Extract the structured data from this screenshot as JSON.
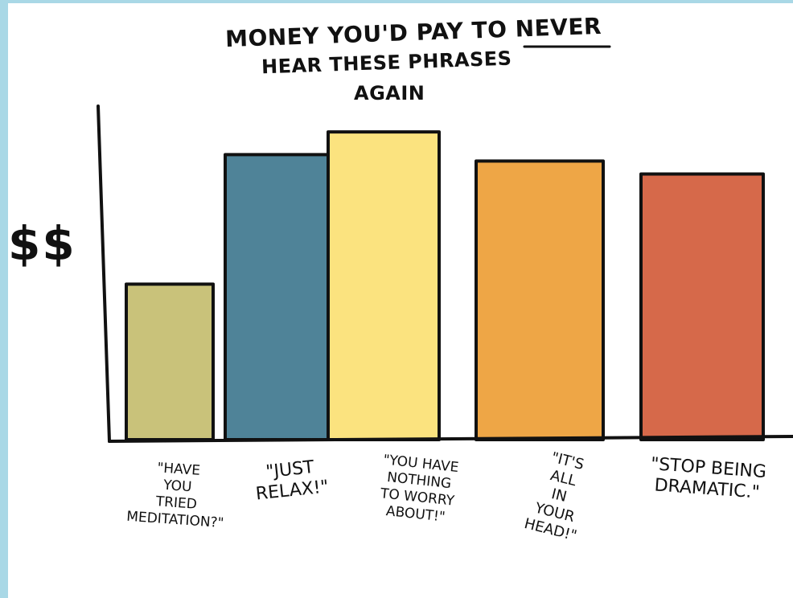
{
  "chart_data": {
    "type": "bar",
    "title_lines": [
      "MONEY YOU'D PAY TO NEVER",
      "HEAR THESE PHRASES",
      "AGAIN"
    ],
    "ylabel": "$$",
    "xlabel": "",
    "categories": [
      "\"HAVE\nYOU\nTRIED\nMEDITATION?\"",
      "\"JUST\nRELAX!\"",
      "\"YOU HAVE\nNOTHING\nTO WORRY\nABOUT!\"",
      "\"IT'S\nALL\nIN\nYOUR\nHEAD!\"",
      "\"STOP BEING\nDRAMATIC.\""
    ],
    "values": [
      48,
      88,
      95,
      86,
      82
    ],
    "ylim": [
      0,
      100
    ],
    "grid": false,
    "colors": [
      "#c9c27a",
      "#4f8398",
      "#fbe37f",
      "#eea646",
      "#d6694a"
    ]
  }
}
